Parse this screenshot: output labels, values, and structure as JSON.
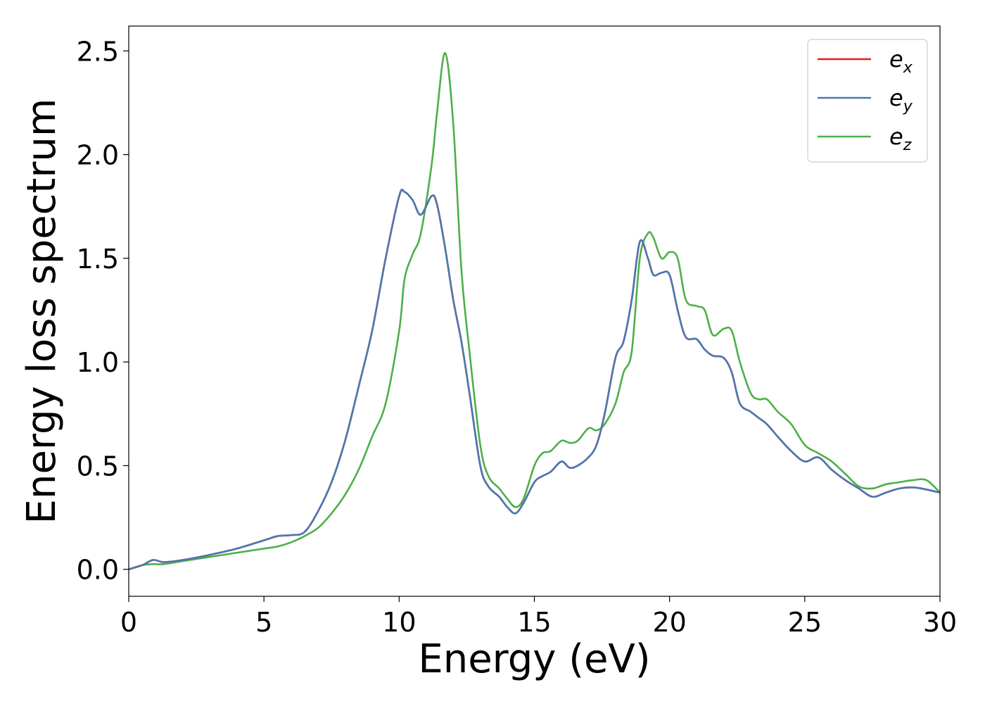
{
  "chart_data": {
    "type": "line",
    "xlabel": "Energy (eV)",
    "ylabel": "Energy loss spectrum",
    "xlim": [
      0,
      30
    ],
    "ylim": [
      -0.13,
      2.62
    ],
    "xticks": [
      "0",
      "5",
      "10",
      "15",
      "20",
      "25",
      "30"
    ],
    "yticks": [
      "0.0",
      "0.5",
      "1.0",
      "1.5",
      "2.0",
      "2.5"
    ],
    "grid": false,
    "legend_position": "top-right",
    "x": [
      0,
      0.5,
      0.9,
      1.3,
      2,
      3,
      4,
      5,
      5.5,
      6,
      6.5,
      7,
      7.5,
      8,
      8.5,
      9,
      9.5,
      10,
      10.2,
      10.5,
      10.8,
      11.2,
      11.4,
      11.7,
      12,
      12.3,
      12.6,
      13,
      13.3,
      13.7,
      14,
      14.3,
      14.6,
      15,
      15.3,
      15.6,
      16,
      16.3,
      16.6,
      17,
      17.3,
      17.6,
      18,
      18.3,
      18.6,
      18.9,
      19.2,
      19.4,
      19.7,
      20,
      20.3,
      20.6,
      21,
      21.3,
      21.6,
      22,
      22.3,
      22.6,
      23,
      23.3,
      23.6,
      24,
      24.5,
      25,
      25.5,
      26,
      26.5,
      27,
      27.5,
      28,
      28.5,
      29,
      29.5,
      30
    ],
    "series": [
      {
        "name": "e_x",
        "label_main": "e",
        "label_sub": "x",
        "color": "#e41a1c",
        "values": [
          0,
          0.02,
          0.045,
          0.035,
          0.045,
          0.07,
          0.1,
          0.14,
          0.16,
          0.165,
          0.18,
          0.28,
          0.42,
          0.62,
          0.88,
          1.15,
          1.5,
          1.8,
          1.82,
          1.78,
          1.71,
          1.8,
          1.76,
          1.55,
          1.3,
          1.1,
          0.85,
          0.5,
          0.4,
          0.35,
          0.3,
          0.27,
          0.32,
          0.42,
          0.45,
          0.47,
          0.52,
          0.49,
          0.5,
          0.54,
          0.6,
          0.75,
          1.02,
          1.1,
          1.3,
          1.58,
          1.5,
          1.42,
          1.43,
          1.42,
          1.25,
          1.12,
          1.11,
          1.06,
          1.03,
          1.02,
          0.95,
          0.8,
          0.76,
          0.73,
          0.7,
          0.64,
          0.57,
          0.52,
          0.54,
          0.48,
          0.43,
          0.39,
          0.35,
          0.37,
          0.39,
          0.395,
          0.385,
          0.37
        ]
      },
      {
        "name": "e_y",
        "label_main": "e",
        "label_sub": "y",
        "color": "#4a78b0",
        "values": [
          0,
          0.02,
          0.045,
          0.035,
          0.045,
          0.07,
          0.1,
          0.14,
          0.16,
          0.165,
          0.18,
          0.28,
          0.42,
          0.62,
          0.88,
          1.15,
          1.5,
          1.8,
          1.82,
          1.78,
          1.71,
          1.8,
          1.76,
          1.55,
          1.3,
          1.1,
          0.85,
          0.5,
          0.4,
          0.35,
          0.3,
          0.27,
          0.32,
          0.42,
          0.45,
          0.47,
          0.52,
          0.49,
          0.5,
          0.54,
          0.6,
          0.75,
          1.02,
          1.1,
          1.3,
          1.58,
          1.5,
          1.42,
          1.43,
          1.42,
          1.25,
          1.12,
          1.11,
          1.06,
          1.03,
          1.02,
          0.95,
          0.8,
          0.76,
          0.73,
          0.7,
          0.64,
          0.57,
          0.52,
          0.54,
          0.48,
          0.43,
          0.39,
          0.35,
          0.37,
          0.39,
          0.395,
          0.385,
          0.37
        ]
      },
      {
        "name": "e_z",
        "label_main": "e",
        "label_sub": "z",
        "color": "#4daf4a",
        "values": [
          0,
          0.02,
          0.025,
          0.025,
          0.04,
          0.06,
          0.08,
          0.1,
          0.11,
          0.13,
          0.16,
          0.2,
          0.27,
          0.36,
          0.48,
          0.64,
          0.8,
          1.15,
          1.4,
          1.52,
          1.62,
          1.95,
          2.2,
          2.49,
          2.15,
          1.45,
          1.05,
          0.6,
          0.45,
          0.39,
          0.34,
          0.3,
          0.34,
          0.5,
          0.56,
          0.57,
          0.62,
          0.61,
          0.62,
          0.68,
          0.67,
          0.7,
          0.8,
          0.95,
          1.05,
          1.5,
          1.62,
          1.6,
          1.5,
          1.53,
          1.5,
          1.3,
          1.27,
          1.25,
          1.13,
          1.16,
          1.15,
          1.0,
          0.85,
          0.82,
          0.82,
          0.76,
          0.7,
          0.6,
          0.56,
          0.52,
          0.46,
          0.4,
          0.39,
          0.41,
          0.42,
          0.43,
          0.43,
          0.37
        ]
      }
    ]
  },
  "colors": {
    "axes": "#000000",
    "legend_border": "#cccccc",
    "background": "#ffffff"
  }
}
